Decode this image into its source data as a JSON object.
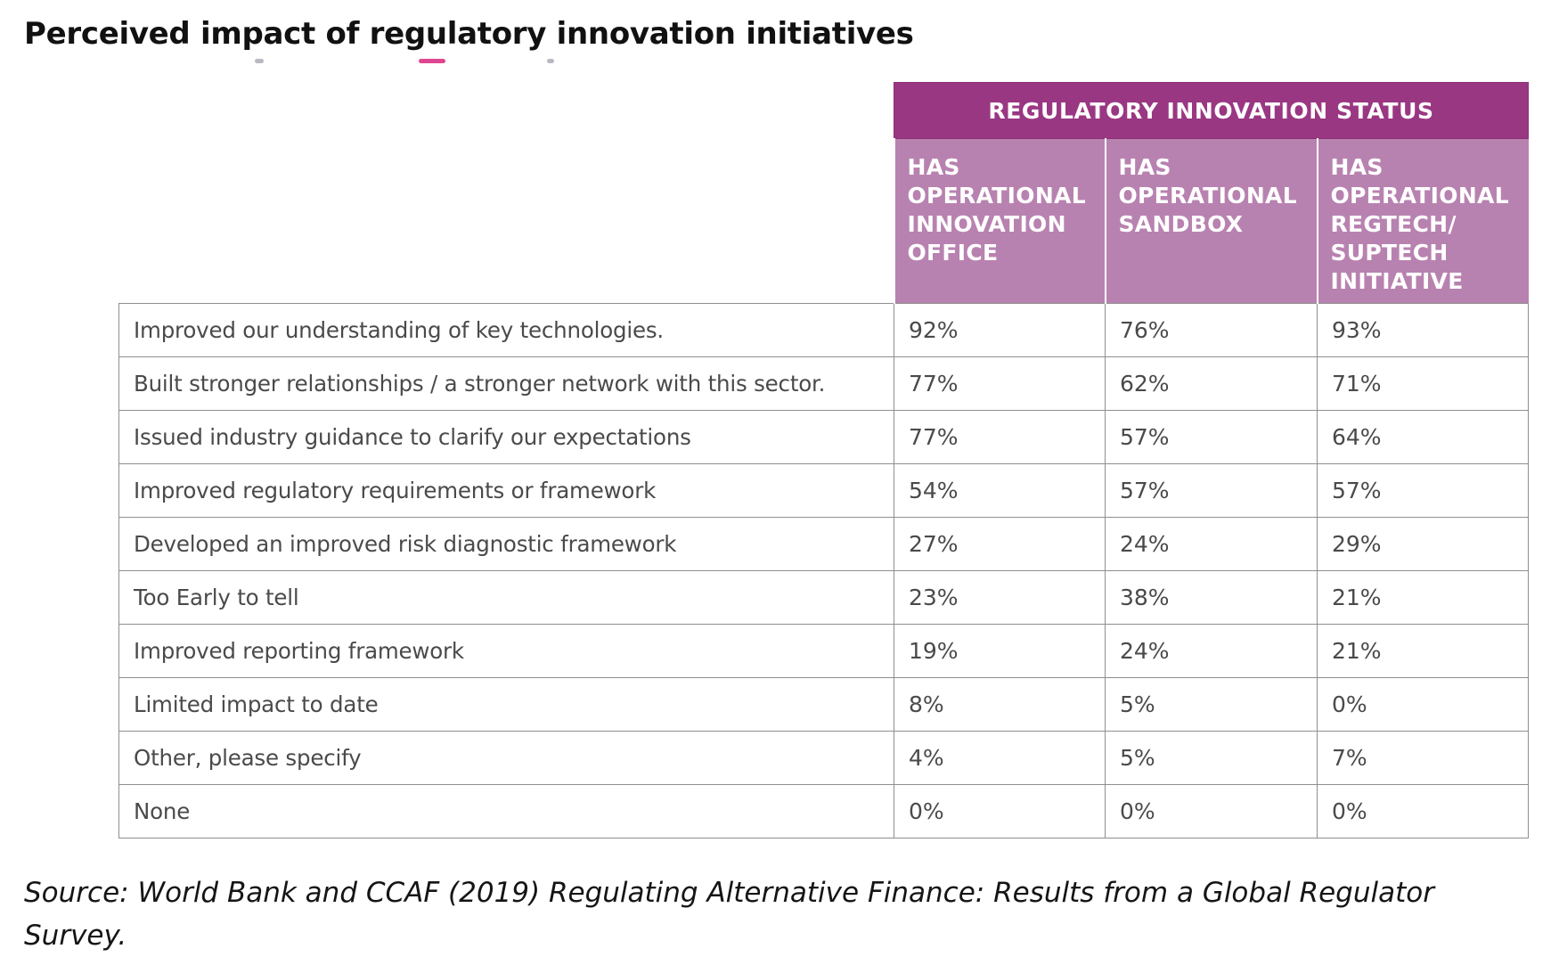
{
  "title": "Perceived impact of regulatory innovation initiatives",
  "colors": {
    "group_header_bg": "#9a3783",
    "column_header_bg": "#b882b0",
    "header_text": "#ffffff",
    "cell_border": "#8f8f8f",
    "body_text": "#4a4a4a",
    "deco_stroke_light": "#b9b9c4",
    "deco_stroke_pink": "#e0468f"
  },
  "chart_data": {
    "type": "table",
    "title": "Perceived impact of regulatory innovation initiatives",
    "group_header": "REGULATORY INNOVATION STATUS",
    "columns": [
      "HAS OPERATIONAL INNOVATION OFFICE",
      "HAS OPERATIONAL SANDBOX",
      "HAS OPERATIONAL REGTECH/ SUPTECH INITIATIVE"
    ],
    "rows": [
      {
        "label": "Improved our understanding of key technologies.",
        "values": [
          "92%",
          "76%",
          "93%"
        ]
      },
      {
        "label": "Built stronger relationships / a stronger network with this sector.",
        "values": [
          "77%",
          "62%",
          "71%"
        ]
      },
      {
        "label": "Issued industry guidance to clarify our expectations",
        "values": [
          "77%",
          "57%",
          "64%"
        ]
      },
      {
        "label": "Improved regulatory requirements or framework",
        "values": [
          "54%",
          "57%",
          "57%"
        ]
      },
      {
        "label": "Developed an improved risk diagnostic framework",
        "values": [
          "27%",
          "24%",
          "29%"
        ]
      },
      {
        "label": "Too Early to tell",
        "values": [
          "23%",
          "38%",
          "21%"
        ]
      },
      {
        "label": "Improved reporting framework",
        "values": [
          "19%",
          "24%",
          "21%"
        ]
      },
      {
        "label": "Limited impact to date",
        "values": [
          "8%",
          "5%",
          "0%"
        ]
      },
      {
        "label": "Other, please specify",
        "values": [
          "4%",
          "5%",
          "7%"
        ]
      },
      {
        "label": "None",
        "values": [
          "0%",
          "0%",
          "0%"
        ]
      }
    ]
  },
  "source": "Source: World Bank and CCAF (2019) Regulating Alternative Finance: Results from a Global Regulator Survey."
}
